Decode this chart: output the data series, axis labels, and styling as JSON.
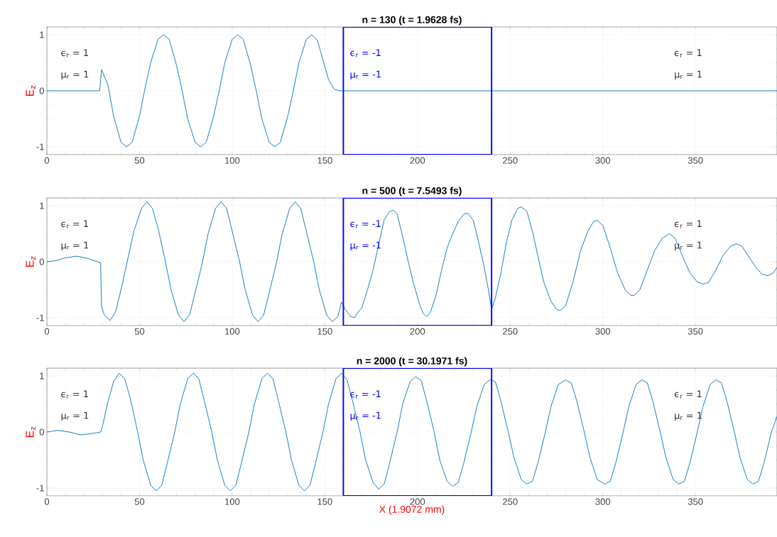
{
  "chart_data": [
    {
      "type": "line",
      "title": "n = 130 (t = 1.9628 fs)",
      "ylabel": "E$_{z}$",
      "xlim": [
        0,
        394
      ],
      "ylim": [
        -1.14,
        1.14
      ],
      "xticks": [
        0,
        50,
        100,
        150,
        200,
        250,
        300,
        350
      ],
      "yticks": [
        -1,
        0,
        1
      ],
      "grid": true,
      "x": [
        0,
        28.5,
        29.5,
        33,
        36,
        40,
        43,
        46,
        50,
        53,
        56,
        60,
        63,
        66,
        70,
        73,
        76,
        80,
        83,
        86,
        90,
        93,
        96,
        100,
        103,
        106,
        110,
        113,
        116,
        120,
        123,
        126,
        130,
        133,
        136,
        140,
        143,
        146,
        149,
        152,
        155,
        158,
        394
      ],
      "ref_lines": [
        {
          "axis": "x",
          "value": 160,
          "color": "#0000ff"
        },
        {
          "axis": "x",
          "value": 240,
          "color": "#0000ff"
        }
      ],
      "series": [
        {
          "color": "#0072bd",
          "values": [
            0,
            0,
            0.38,
            0.1,
            -0.45,
            -0.92,
            -1,
            -0.92,
            -0.45,
            0.05,
            0.5,
            0.92,
            1,
            0.92,
            0.45,
            0,
            -0.5,
            -0.92,
            -1,
            -0.92,
            -0.45,
            0,
            0.5,
            0.92,
            1,
            0.92,
            0.45,
            0,
            -0.5,
            -0.92,
            -1,
            -0.92,
            -0.45,
            0,
            0.5,
            0.92,
            1,
            0.9,
            0.55,
            0.2,
            0.03,
            0,
            0
          ]
        }
      ],
      "annotations": [
        "ϵ$_{r}$ = 1",
        "μ$_{r}$ = 1",
        "ϵ$_{r}$ = -1",
        "μ$_{r}$ = -1",
        "ϵ$_{r}$ = 1",
        "μ$_{r}$ = 1"
      ]
    },
    {
      "type": "line",
      "title": "n = 500 (t = 7.5493 fs)",
      "ylabel": "E$_{z}$",
      "xlim": [
        0,
        394
      ],
      "ylim": [
        -1.14,
        1.14
      ],
      "xticks": [
        0,
        50,
        100,
        150,
        200,
        250,
        300,
        350
      ],
      "yticks": [
        -1,
        0,
        1
      ],
      "grid": true,
      "x": [
        0,
        5,
        10,
        16,
        22,
        29,
        29.5,
        31,
        34,
        37,
        40,
        44,
        47,
        51,
        54,
        57,
        60,
        64,
        67,
        71,
        74,
        77,
        80,
        84,
        87,
        91,
        94,
        97,
        100,
        104,
        107,
        111,
        114,
        117,
        120,
        124,
        127,
        131,
        134,
        137,
        140,
        144,
        147,
        151,
        154,
        157,
        159,
        161,
        164,
        166,
        168,
        170,
        173,
        176,
        179,
        182,
        185,
        187,
        189,
        192,
        195,
        198,
        201,
        203,
        205,
        207,
        210,
        213,
        216,
        219,
        222,
        225,
        227,
        230,
        233,
        236,
        238,
        240,
        242,
        245,
        248,
        251,
        254,
        256,
        259,
        262,
        265,
        268,
        272,
        275,
        277,
        280,
        284,
        288,
        292,
        295,
        297,
        300,
        304,
        308,
        312,
        315,
        317,
        320,
        324,
        328,
        332,
        336,
        339,
        343,
        347,
        351,
        354,
        357,
        361,
        365,
        369,
        372,
        375,
        379,
        383,
        386,
        389,
        392,
        394
      ],
      "ref_lines": [
        {
          "axis": "x",
          "value": 160,
          "color": "#0000ff"
        },
        {
          "axis": "x",
          "value": 240,
          "color": "#0000ff"
        }
      ],
      "series": [
        {
          "color": "#0072bd",
          "values": [
            0,
            0.02,
            0.07,
            0.1,
            0.06,
            -0.02,
            -0.8,
            -0.95,
            -1.05,
            -0.9,
            -0.5,
            0.1,
            0.55,
            0.95,
            1.07,
            0.95,
            0.6,
            0,
            -0.5,
            -0.95,
            -1.07,
            -0.95,
            -0.55,
            0,
            0.5,
            0.95,
            1.07,
            0.95,
            0.55,
            0,
            -0.5,
            -0.95,
            -1.07,
            -0.95,
            -0.55,
            0,
            0.5,
            0.95,
            1.07,
            0.95,
            0.55,
            0,
            -0.5,
            -0.95,
            -1.07,
            -0.98,
            -0.72,
            -0.85,
            -0.98,
            -1,
            -0.9,
            -0.82,
            -0.5,
            -0.15,
            0.3,
            0.75,
            0.9,
            0.92,
            0.85,
            0.45,
            0,
            -0.4,
            -0.75,
            -0.92,
            -0.98,
            -0.9,
            -0.6,
            -0.15,
            0.25,
            0.5,
            0.72,
            0.85,
            0.87,
            0.75,
            0.35,
            -0.1,
            -0.45,
            -0.85,
            -0.65,
            -0.2,
            0.35,
            0.75,
            0.95,
            0.98,
            0.9,
            0.55,
            0.1,
            -0.35,
            -0.7,
            -0.85,
            -0.87,
            -0.78,
            -0.35,
            0.2,
            0.55,
            0.72,
            0.74,
            0.65,
            0.25,
            -0.2,
            -0.5,
            -0.6,
            -0.6,
            -0.5,
            -0.15,
            0.2,
            0.42,
            0.5,
            0.42,
            0.1,
            -0.2,
            -0.36,
            -0.4,
            -0.37,
            -0.15,
            0.12,
            0.28,
            0.32,
            0.28,
            0.08,
            -0.12,
            -0.22,
            -0.25,
            -0.2,
            -0.1
          ]
        }
      ],
      "annotations": [
        "ϵ$_{r}$ = 1",
        "μ$_{r}$ = 1",
        "ϵ$_{r}$ = -1",
        "μ$_{r}$ = -1",
        "ϵ$_{r}$ = 1",
        "μ$_{r}$ = 1"
      ]
    },
    {
      "type": "line",
      "title": "n = 2000 (t = 30.1971 fs)",
      "ylabel": "E$_{z}$",
      "xlabel": "X (1.9072 mm)",
      "xlim": [
        0,
        394
      ],
      "ylim": [
        -1.14,
        1.14
      ],
      "xticks": [
        0,
        50,
        100,
        150,
        200,
        250,
        300,
        350
      ],
      "yticks": [
        -1,
        0,
        1
      ],
      "grid": true,
      "x": [
        0,
        6,
        12,
        18,
        24,
        29,
        30,
        33,
        36,
        39,
        42,
        45,
        49,
        52,
        56,
        59,
        62,
        65,
        69,
        72,
        76,
        79,
        82,
        85,
        89,
        92,
        96,
        99,
        102,
        105,
        109,
        112,
        116,
        119,
        122,
        125,
        129,
        132,
        136,
        139,
        142,
        145,
        149,
        152,
        156,
        159,
        162,
        165,
        169,
        172,
        176,
        179,
        182,
        185,
        189,
        192,
        196,
        199,
        202,
        205,
        209,
        212,
        216,
        219,
        222,
        225,
        229,
        232,
        236,
        239,
        242,
        245,
        249,
        252,
        256,
        259,
        262,
        265,
        269,
        272,
        276,
        280,
        283,
        286,
        290,
        293,
        297,
        301,
        304,
        307,
        311,
        314,
        318,
        321,
        324,
        327,
        331,
        334,
        338,
        341,
        344,
        347,
        351,
        354,
        358,
        361,
        364,
        367,
        371,
        374,
        378,
        381,
        384,
        387,
        391,
        394
      ],
      "ref_lines": [
        {
          "axis": "x",
          "value": 160,
          "color": "#0000ff"
        },
        {
          "axis": "x",
          "value": 240,
          "color": "#0000ff"
        }
      ],
      "series": [
        {
          "color": "#0072bd",
          "values": [
            0,
            0.03,
            0,
            -0.05,
            -0.03,
            0,
            0.1,
            0.55,
            0.9,
            1.05,
            0.95,
            0.6,
            0,
            -0.5,
            -0.95,
            -1.05,
            -0.95,
            -0.55,
            0,
            0.5,
            0.95,
            1.05,
            0.95,
            0.55,
            0,
            -0.5,
            -0.95,
            -1.05,
            -0.95,
            -0.55,
            0,
            0.5,
            0.95,
            1.05,
            0.95,
            0.55,
            0,
            -0.5,
            -0.95,
            -1.05,
            -0.95,
            -0.55,
            0,
            0.5,
            0.95,
            1.05,
            0.93,
            0.55,
            0,
            -0.5,
            -0.9,
            -1.02,
            -0.93,
            -0.55,
            0,
            0.5,
            0.9,
            0.99,
            0.92,
            0.55,
            0,
            -0.5,
            -0.88,
            -0.97,
            -0.9,
            -0.55,
            0,
            0.45,
            0.85,
            0.93,
            0.9,
            0.55,
            0,
            -0.45,
            -0.85,
            -0.93,
            -0.88,
            -0.55,
            0,
            0.45,
            0.85,
            0.93,
            0.88,
            0.55,
            0,
            -0.45,
            -0.85,
            -0.93,
            -0.88,
            -0.55,
            0,
            0.45,
            0.85,
            0.93,
            0.88,
            0.55,
            0,
            -0.45,
            -0.85,
            -0.93,
            -0.88,
            -0.55,
            0,
            0.45,
            0.85,
            0.93,
            0.88,
            0.55,
            0,
            -0.45,
            -0.85,
            -0.93,
            -0.88,
            -0.55,
            0,
            0.28
          ]
        }
      ],
      "annotations": [
        "ϵ$_{r}$ = 1",
        "μ$_{r}$ = 1",
        "ϵ$_{r}$ = -1",
        "μ$_{r}$ = -1",
        "ϵ$_{r}$ = 1",
        "μ$_{r}$ = 1"
      ]
    }
  ]
}
